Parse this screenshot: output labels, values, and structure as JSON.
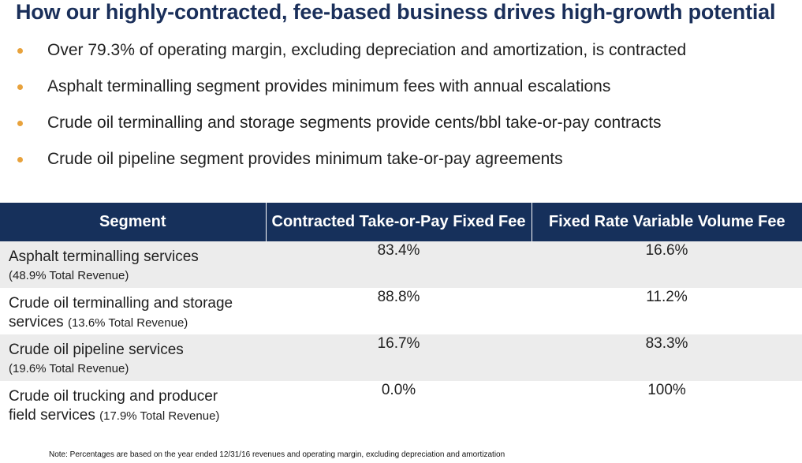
{
  "title": "How our highly-contracted, fee-based business drives high-growth potential",
  "bullets": [
    "Over 79.3% of operating margin, excluding depreciation and amortization, is contracted",
    "Asphalt terminalling segment provides minimum fees with annual escalations",
    "Crude oil terminalling and storage segments provide cents/bbl take-or-pay contracts",
    "Crude oil pipeline segment provides minimum take-or-pay agreements"
  ],
  "table": {
    "headers": [
      "Segment",
      "Contracted Take-or-Pay Fixed Fee",
      "Fixed Rate Variable Volume Fee"
    ],
    "rows": [
      {
        "line1": "Asphalt terminalling services",
        "line2": "",
        "revenue": "(48.9% Total Revenue)",
        "fixed_fee": "83.4%",
        "variable_fee": "16.6%"
      },
      {
        "line1": "Crude oil terminalling and storage",
        "line2": "services",
        "revenue": "(13.6% Total Revenue)",
        "fixed_fee": "88.8%",
        "variable_fee": "11.2%"
      },
      {
        "line1": "Crude oil pipeline services",
        "line2": "",
        "revenue": "(19.6% Total Revenue)",
        "fixed_fee": "16.7%",
        "variable_fee": "83.3%"
      },
      {
        "line1": "Crude oil trucking and producer",
        "line2": "field services",
        "revenue": "(17.9% Total Revenue)",
        "fixed_fee": "0.0%",
        "variable_fee": "100%"
      }
    ]
  },
  "footnote": "Note: Percentages are based on the year ended 12/31/16 revenues and operating margin, excluding depreciation and amortization",
  "colors": {
    "title": "#1a2f5a",
    "header_bg": "#16305b",
    "bullet": "#e8a23c",
    "shaded_row": "#ececec"
  }
}
